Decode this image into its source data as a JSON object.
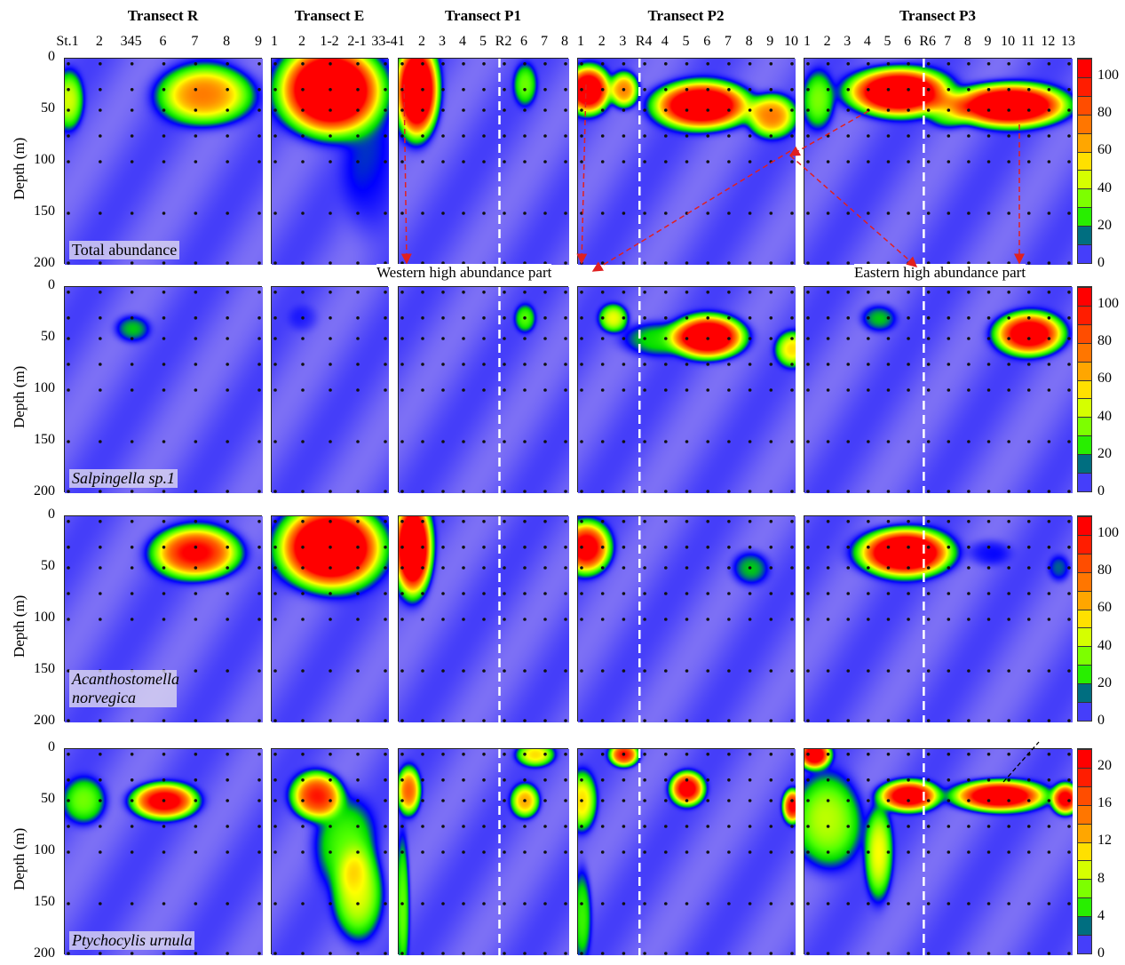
{
  "chart_data": {
    "type": "heatmap",
    "ylabel": "Depth (m)",
    "ylim": [
      0,
      200
    ],
    "yticks": [
      "0",
      "50",
      "100",
      "150",
      "200"
    ],
    "station_depths": [
      5,
      30,
      50,
      75,
      100,
      150,
      200
    ],
    "annotations": [
      "Western high abundance part",
      "Eastern high abundance part"
    ],
    "transects": [
      {
        "title": "Transect R",
        "stations": [
          "St.1",
          "2",
          "345",
          "6",
          "7",
          "8",
          "9"
        ]
      },
      {
        "title": "Transect E",
        "stations": [
          "1",
          "2",
          "1-2",
          "2-1",
          "33-4"
        ]
      },
      {
        "title": "Transect P1",
        "stations": [
          "1",
          "2",
          "3",
          "4",
          "5",
          "R2",
          "6",
          "7",
          "8"
        ],
        "divider": 5
      },
      {
        "title": "Transect P2",
        "stations": [
          "1",
          "2",
          "3",
          "R4",
          "4",
          "5",
          "6",
          "7",
          "8",
          "9",
          "10"
        ],
        "divider": 3
      },
      {
        "title": "Transect P3",
        "stations": [
          "1",
          "2",
          "3",
          "4",
          "5",
          "6",
          "R6",
          "7",
          "8",
          "9",
          "10",
          "11",
          "12",
          "13"
        ],
        "divider": 6
      }
    ],
    "rows": [
      {
        "label": "Total abundance",
        "italic": false,
        "max": 110,
        "colorbar": [
          "0",
          "20",
          "40",
          "60",
          "80",
          "100"
        ],
        "hotspots": [
          [
            {
              "s": 4.3,
              "d": 35,
              "v": 70,
              "rx": 1.3,
              "ry": 25
            },
            {
              "s": 0,
              "d": 40,
              "v": 40,
              "rx": 0.4,
              "ry": 25
            }
          ],
          [
            {
              "s": 2,
              "d": 30,
              "v": 160,
              "rx": 1.6,
              "ry": 38
            },
            {
              "s": 3.5,
              "d": 110,
              "v": 8,
              "rx": 1,
              "ry": 60
            }
          ],
          [
            {
              "s": 0.7,
              "d": 30,
              "v": 160,
              "rx": 0.9,
              "ry": 40
            },
            {
              "s": 6,
              "d": 25,
              "v": 28,
              "rx": 0.5,
              "ry": 18
            }
          ],
          [
            {
              "s": 0.3,
              "d": 30,
              "v": 130,
              "rx": 0.9,
              "ry": 20
            },
            {
              "s": 2,
              "d": 30,
              "v": 70,
              "rx": 0.6,
              "ry": 15
            },
            {
              "s": 5.7,
              "d": 45,
              "v": 140,
              "rx": 2,
              "ry": 20
            },
            {
              "s": 9,
              "d": 55,
              "v": 70,
              "rx": 1,
              "ry": 18
            }
          ],
          [
            {
              "s": 4.5,
              "d": 32,
              "v": 150,
              "rx": 2.2,
              "ry": 20
            },
            {
              "s": 10,
              "d": 45,
              "v": 150,
              "rx": 2.5,
              "ry": 18
            },
            {
              "s": 0.5,
              "d": 40,
              "v": 30,
              "rx": 0.7,
              "ry": 25
            },
            {
              "s": 7,
              "d": 50,
              "v": 30,
              "rx": 1,
              "ry": 15
            }
          ]
        ]
      },
      {
        "label": "Salpingella sp.1",
        "italic": true,
        "max": 110,
        "colorbar": [
          "0",
          "20",
          "40",
          "60",
          "80",
          "100"
        ],
        "hotspots": [
          [
            {
              "s": 2,
              "d": 40,
              "v": 18,
              "rx": 0.5,
              "ry": 12
            }
          ],
          [
            {
              "s": 1,
              "d": 30,
              "v": 4,
              "rx": 0.5,
              "ry": 12
            }
          ],
          [
            {
              "s": 6,
              "d": 30,
              "v": 25,
              "rx": 0.45,
              "ry": 12
            }
          ],
          [
            {
              "s": 1.5,
              "d": 30,
              "v": 45,
              "rx": 0.6,
              "ry": 12
            },
            {
              "s": 6,
              "d": 48,
              "v": 140,
              "rx": 1.5,
              "ry": 18
            },
            {
              "s": 10,
              "d": 60,
              "v": 50,
              "rx": 0.7,
              "ry": 15
            },
            {
              "s": 3.5,
              "d": 50,
              "v": 20,
              "rx": 1.5,
              "ry": 15
            }
          ],
          [
            {
              "s": 3.5,
              "d": 30,
              "v": 18,
              "rx": 0.8,
              "ry": 12
            },
            {
              "s": 11,
              "d": 45,
              "v": 120,
              "rx": 1.5,
              "ry": 18
            }
          ]
        ]
      },
      {
        "label": "Acanthostomella norvegica",
        "italic": true,
        "max": 110,
        "colorbar": [
          "0",
          "20",
          "40",
          "60",
          "80",
          "100"
        ],
        "hotspots": [
          [
            {
              "s": 4,
              "d": 35,
              "v": 100,
              "rx": 1.2,
              "ry": 22
            }
          ],
          [
            {
              "s": 2,
              "d": 30,
              "v": 160,
              "rx": 1.6,
              "ry": 35
            }
          ],
          [
            {
              "s": 0.5,
              "d": 30,
              "v": 160,
              "rx": 0.8,
              "ry": 40
            }
          ],
          [
            {
              "s": 0.2,
              "d": 30,
              "v": 110,
              "rx": 1,
              "ry": 22
            },
            {
              "s": 8,
              "d": 50,
              "v": 18,
              "rx": 0.8,
              "ry": 15
            }
          ],
          [
            {
              "s": 4.8,
              "d": 35,
              "v": 150,
              "rx": 2,
              "ry": 20
            },
            {
              "s": 12.5,
              "d": 50,
              "v": 12,
              "rx": 0.5,
              "ry": 12
            },
            {
              "s": 9,
              "d": 35,
              "v": 8,
              "rx": 1,
              "ry": 12
            }
          ]
        ]
      },
      {
        "label": "Ptychocylis urnula",
        "italic": true,
        "max": 22,
        "colorbar": [
          "0",
          "4",
          "8",
          "12",
          "16",
          "20"
        ],
        "hotspots": [
          [
            {
              "s": 3,
              "d": 50,
              "v": 22,
              "rx": 0.9,
              "ry": 15
            },
            {
              "s": 0.5,
              "d": 50,
              "v": 6,
              "rx": 0.6,
              "ry": 20
            }
          ],
          [
            {
              "s": 1.5,
              "d": 45,
              "v": 19,
              "rx": 0.8,
              "ry": 20
            },
            {
              "s": 3,
              "d": 140,
              "v": 9,
              "rx": 0.8,
              "ry": 40
            },
            {
              "s": 2.5,
              "d": 90,
              "v": 5,
              "rx": 1,
              "ry": 40
            }
          ],
          [
            {
              "s": 0.3,
              "d": 40,
              "v": 15,
              "rx": 0.5,
              "ry": 20
            },
            {
              "s": 6,
              "d": 50,
              "v": 12,
              "rx": 0.6,
              "ry": 14
            },
            {
              "s": 0,
              "d": 150,
              "v": 6,
              "rx": 0.3,
              "ry": 60
            },
            {
              "s": 6.5,
              "d": 5,
              "v": 10,
              "rx": 0.8,
              "ry": 10
            }
          ],
          [
            {
              "s": 2,
              "d": 5,
              "v": 19,
              "rx": 0.6,
              "ry": 10
            },
            {
              "s": 5,
              "d": 38,
              "v": 22,
              "rx": 0.7,
              "ry": 14
            },
            {
              "s": 10,
              "d": 55,
              "v": 20,
              "rx": 0.4,
              "ry": 14
            },
            {
              "s": 0,
              "d": 50,
              "v": 10,
              "rx": 0.6,
              "ry": 25
            },
            {
              "s": 0,
              "d": 160,
              "v": 5,
              "rx": 0.4,
              "ry": 40
            }
          ],
          [
            {
              "s": 0.3,
              "d": 5,
              "v": 24,
              "rx": 0.7,
              "ry": 12
            },
            {
              "s": 5,
              "d": 45,
              "v": 24,
              "rx": 1.3,
              "ry": 13
            },
            {
              "s": 9.5,
              "d": 45,
              "v": 26,
              "rx": 2,
              "ry": 13
            },
            {
              "s": 12.8,
              "d": 48,
              "v": 22,
              "rx": 0.6,
              "ry": 13
            },
            {
              "s": 3.5,
              "d": 100,
              "v": 9,
              "rx": 0.6,
              "ry": 40
            },
            {
              "s": 1,
              "d": 70,
              "v": 8,
              "rx": 1.5,
              "ry": 40
            }
          ]
        ]
      }
    ]
  }
}
